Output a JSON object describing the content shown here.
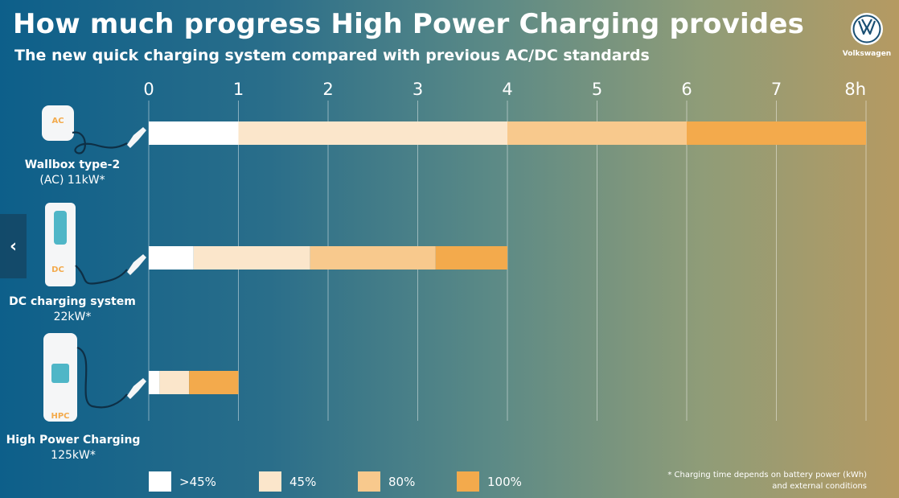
{
  "header": {
    "title": "How much progress High Power Charging provides",
    "subtitle": "The new quick charging system compared with previous AC/DC standards"
  },
  "brand": {
    "name": "Volkswagen"
  },
  "navigation": {
    "prev_icon": "chevron-left-icon"
  },
  "chargers": [
    {
      "badge": "AC",
      "line1": "Wallbox type-2",
      "line2": "(AC) 11kW*"
    },
    {
      "badge": "DC",
      "line1": "DC charging system",
      "line2": "22kW*"
    },
    {
      "badge": "HPC",
      "line1": "High Power Charging",
      "line2": "125kW*"
    }
  ],
  "footnote": "* Charging time depends on battery power (kWh) and external conditions",
  "colors": {
    "seg1": "#ffffff",
    "seg2": "#fbe6cb",
    "seg3": "#f8c98d",
    "seg4": "#f3aa4c",
    "badge_text": "#f3aa4c"
  },
  "chart_data": {
    "type": "bar",
    "orientation": "horizontal",
    "stacked": true,
    "categories": [
      "Wallbox type-2 (AC) 11kW*",
      "DC charging system 22kW*",
      "High Power Charging 125kW*"
    ],
    "x_ticks": [
      "0",
      "1",
      "2",
      "3",
      "4",
      "5",
      "6",
      "7",
      "8h"
    ],
    "xlim": [
      0,
      8
    ],
    "grid": true,
    "legend_position": "bottom",
    "series": [
      {
        "name": ">45%",
        "values": [
          1.0,
          0.5,
          0.12
        ]
      },
      {
        "name": "45%",
        "values": [
          3.0,
          1.3,
          0.33
        ]
      },
      {
        "name": "80%",
        "values": [
          2.0,
          1.4,
          0.0
        ]
      },
      {
        "name": "100%",
        "values": [
          2.0,
          0.8,
          0.55
        ]
      }
    ]
  }
}
